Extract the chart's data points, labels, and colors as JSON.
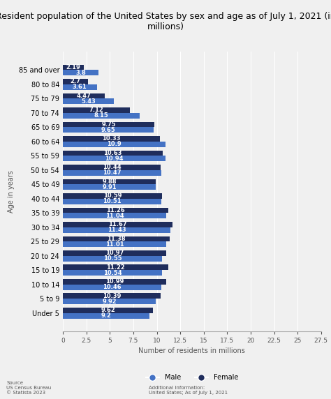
{
  "title": "Resident population of the United States by sex and age as of July 1, 2021 (in\nmillions)",
  "age_groups": [
    "Under 5",
    "5 to 9",
    "10 to 14",
    "15 to 19",
    "20 to 24",
    "25 to 29",
    "30 to 34",
    "35 to 39",
    "40 to 44",
    "45 to 49",
    "50 to 54",
    "55 to 59",
    "60 to 64",
    "65 to 69",
    "70 to 74",
    "75 to 79",
    "80 to 84",
    "85 and over"
  ],
  "male_values": [
    9.2,
    9.92,
    10.46,
    10.54,
    10.55,
    11.01,
    11.43,
    11.04,
    10.51,
    9.91,
    10.47,
    10.94,
    10.9,
    9.65,
    8.15,
    5.43,
    3.61,
    3.8
  ],
  "female_values": [
    9.62,
    10.39,
    10.99,
    11.22,
    10.97,
    11.38,
    11.67,
    11.26,
    10.59,
    9.88,
    10.44,
    10.63,
    10.33,
    9.75,
    7.12,
    4.47,
    2.7,
    2.19
  ],
  "male_color": "#4472C4",
  "female_color": "#1F2D5C",
  "bg_color": "#F0F0F0",
  "plot_bg_color": "#F0F0F0",
  "xlabel": "Number of residents in millions",
  "ylabel": "Age in years",
  "xlim": [
    0,
    27.5
  ],
  "xticks": [
    0,
    2.5,
    5,
    7.5,
    10,
    12.5,
    15,
    17.5,
    20,
    22.5,
    25,
    27.5
  ],
  "source_text": "Source\nUS Census Bureau\n© Statista 2023",
  "additional_info": "Additional Information:\nUnited States; As of July 1, 2021",
  "title_fontsize": 9.0,
  "label_fontsize": 7,
  "tick_fontsize": 6.5,
  "bar_label_fontsize": 6.0
}
